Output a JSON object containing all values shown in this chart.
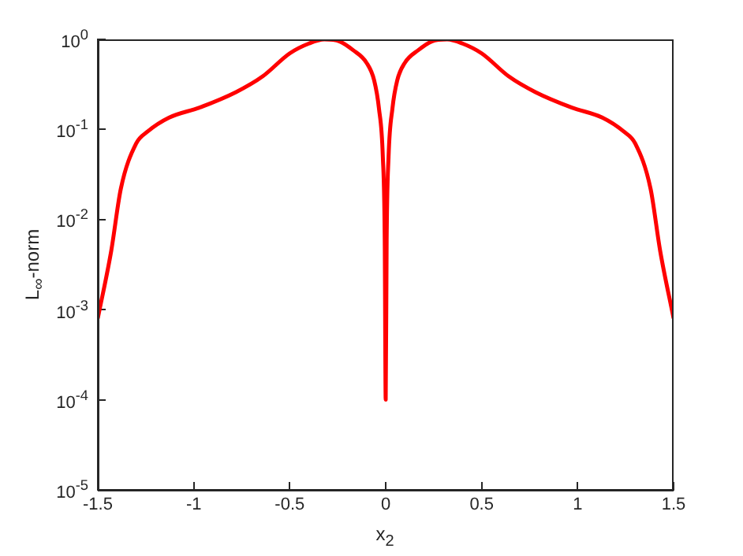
{
  "chart_data": {
    "type": "line",
    "xlabel": "x$_{2}$",
    "ylabel": "L$_{∞}$-norm",
    "log": "y",
    "grid": false,
    "legend": false,
    "marker": "none",
    "line_style": "solid",
    "xlim": [
      -1.5,
      1.5
    ],
    "xticks": [
      -1.5,
      -1,
      -0.5,
      0,
      0.5,
      1,
      1.5
    ],
    "ylim": [
      1e-05,
      1
    ],
    "yticks": [
      {
        "value": 1e-05,
        "label": "10$^{-5}$"
      },
      {
        "value": 0.0001,
        "label": "10$^{-4}$"
      },
      {
        "value": 0.001,
        "label": "10$^{-3}$"
      },
      {
        "value": 0.01,
        "label": "10$^{-2}$"
      },
      {
        "value": 0.1,
        "label": "10$^{-1}$"
      },
      {
        "value": 1,
        "label": "10$^{0}$"
      }
    ],
    "series": [
      {
        "color": "#ff0000",
        "x": [
          -1.5,
          -1.43,
          -1.38,
          -1.3,
          -1.24,
          -1.13,
          -0.97,
          -0.78,
          -0.64,
          -0.5,
          -0.4,
          -0.32,
          -0.24,
          -0.17,
          -0.1,
          -0.06,
          -0.035,
          -0.015,
          -0.005,
          0,
          0.005,
          0.015,
          0.035,
          0.06,
          0.1,
          0.17,
          0.24,
          0.32,
          0.4,
          0.5,
          0.64,
          0.78,
          0.97,
          1.13,
          1.24,
          1.3,
          1.38,
          1.43,
          1.5
        ],
        "values": [
          0.0008,
          0.0045,
          0.022,
          0.07,
          0.095,
          0.135,
          0.175,
          0.26,
          0.39,
          0.7,
          0.9,
          1,
          0.95,
          0.76,
          0.55,
          0.35,
          0.17,
          0.05,
          0.006,
          0.0001,
          0.006,
          0.05,
          0.17,
          0.35,
          0.55,
          0.76,
          0.95,
          1,
          0.9,
          0.7,
          0.39,
          0.26,
          0.175,
          0.135,
          0.095,
          0.07,
          0.022,
          0.0045,
          0.0008
        ]
      }
    ]
  }
}
